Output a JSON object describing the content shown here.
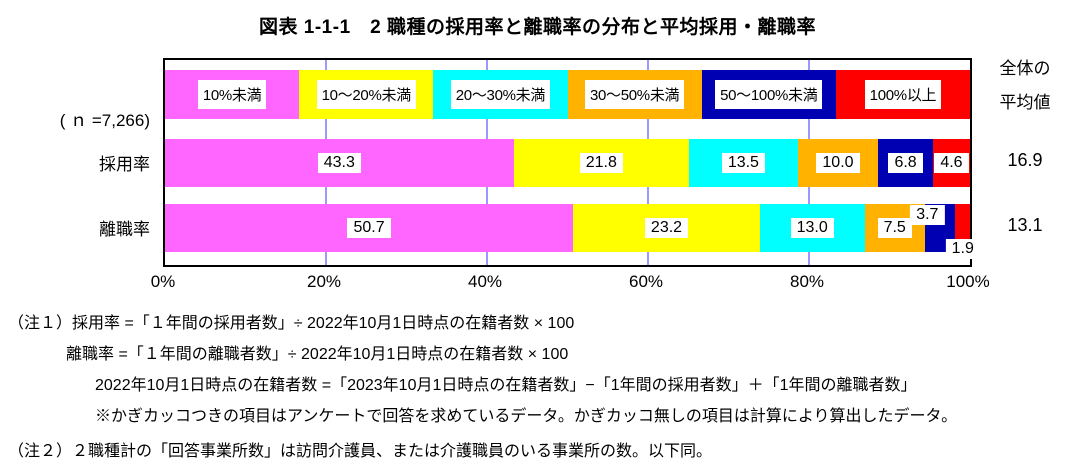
{
  "title": "図表 1-1-1　2 職種の採用率と離職率の分布と平均採用・離職率",
  "n_label": "( ｎ =7,266)",
  "avg_header": {
    "line1": "全体の",
    "line2": "平均値"
  },
  "chart_data": {
    "type": "bar",
    "subtype": "horizontal-stacked",
    "title": "図表 1-1-1　2 職種の採用率と離職率の分布と平均採用・離職率",
    "sample_size": "7,266",
    "categories": [
      "10%未満",
      "10〜20%未満",
      "20〜30%未満",
      "30〜50%未満",
      "50〜100%未満",
      "100%以上"
    ],
    "colors": [
      "#ff66ff",
      "#ffff00",
      "#00ffff",
      "#ffb300",
      "#0000b3",
      "#ff0000"
    ],
    "series": [
      {
        "name": "採用率",
        "values": [
          43.3,
          21.8,
          13.5,
          10.0,
          6.8,
          4.6
        ],
        "labels": [
          "43.3",
          "21.8",
          "13.5",
          "10.0",
          "6.8",
          "4.6"
        ],
        "average": 16.9,
        "average_label": "16.9"
      },
      {
        "name": "離職率",
        "values": [
          50.7,
          23.2,
          13.0,
          7.5,
          3.7,
          1.9
        ],
        "labels": [
          "50.7",
          "23.2",
          "13.0",
          "7.5",
          "3.7",
          "1.9"
        ],
        "average": 13.1,
        "average_label": "13.1"
      }
    ],
    "xlim": [
      0,
      100
    ],
    "x_ticks": [
      "0%",
      "20%",
      "40%",
      "60%",
      "80%",
      "100%"
    ],
    "x_tick_positions": [
      0,
      20,
      40,
      60,
      80,
      100
    ],
    "gridlines_at": [
      20,
      40,
      60,
      80
    ],
    "gridline_color": "#9999ff",
    "legend_position": "top-inside",
    "average_column_header": "全体の平均値"
  },
  "notes": [
    "（注１）採用率 =「１年間の採用者数」÷ 2022年10月1日時点の在籍者数 × 100",
    "離職率 =「１年間の離職者数」÷ 2022年10月1日時点の在籍者数 × 100",
    "2022年10月1日時点の在籍者数 =「2023年10月1日時点の在籍者数」−「1年間の採用者数」＋「1年間の離職者数」",
    "※かぎカッコつきの項目はアンケートで回答を求めているデータ。かぎカッコ無しの項目は計算により算出したデータ。",
    "（注２）２職種計の「回答事業所数」は訪問介護員、または介護職員のいる事業所の数。以下同。"
  ]
}
